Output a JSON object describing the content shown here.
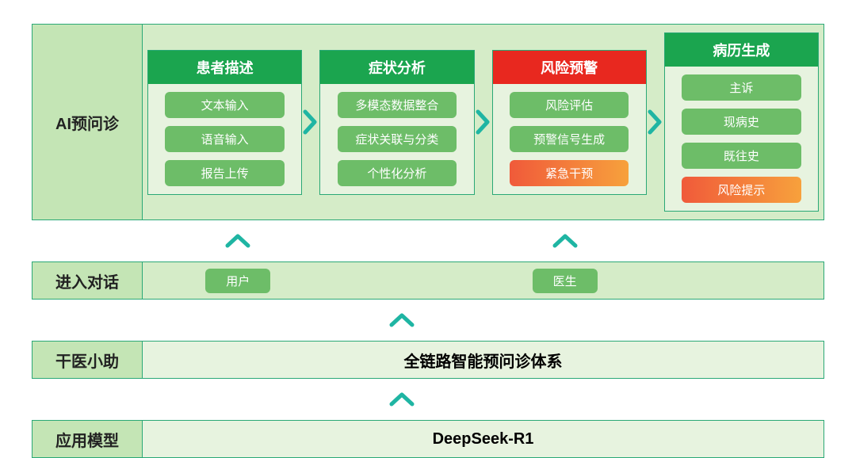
{
  "colors": {
    "label_bg": "#c4e5b5",
    "label_border": "#2aa876",
    "label_text": "#222222",
    "content_bg_light": "#e7f3df",
    "content_bg_lighter": "#d5ecc8",
    "col_border": "#2aa876",
    "col_bg": "#e7f3df",
    "head_green": "#1ba54f",
    "head_red": "#e8281f",
    "pill_green": "#6dbd68",
    "pill_orange_start": "#f05a3a",
    "pill_orange_end": "#f7a13c",
    "arrow_teal": "#1fb5a3",
    "text_dark": "#222222"
  },
  "rows": {
    "r1": {
      "label": "AI预问诊"
    },
    "r2": {
      "label": "进入对话"
    },
    "r3": {
      "label": "干医小助",
      "center": "全链路智能预问诊体系"
    },
    "r4": {
      "label": "应用模型",
      "center": "DeepSeek-R1"
    }
  },
  "columns": [
    {
      "head": "患者描述",
      "head_color": "#1ba54f",
      "items": [
        {
          "text": "文本输入",
          "style": "green"
        },
        {
          "text": "语音输入",
          "style": "green"
        },
        {
          "text": "报告上传",
          "style": "green"
        }
      ]
    },
    {
      "head": "症状分析",
      "head_color": "#1ba54f",
      "items": [
        {
          "text": "多模态数据整合",
          "style": "green"
        },
        {
          "text": "症状关联与分类",
          "style": "green"
        },
        {
          "text": "个性化分析",
          "style": "green"
        }
      ]
    },
    {
      "head": "风险预警",
      "head_color": "#e8281f",
      "items": [
        {
          "text": "风险评估",
          "style": "green"
        },
        {
          "text": "预警信号生成",
          "style": "green"
        },
        {
          "text": "紧急干预",
          "style": "orange"
        }
      ]
    },
    {
      "head": "病历生成",
      "head_color": "#1ba54f",
      "items": [
        {
          "text": "主诉",
          "style": "green"
        },
        {
          "text": "现病史",
          "style": "green"
        },
        {
          "text": "既往史",
          "style": "green"
        },
        {
          "text": "风险提示",
          "style": "orange"
        }
      ]
    }
  ],
  "row2_pills": [
    {
      "text": "用户",
      "pos_pct": 14
    },
    {
      "text": "医生",
      "pos_pct": 62
    }
  ],
  "up_arrows": {
    "after_r1": [
      {
        "pos_pct": 14
      },
      {
        "pos_pct": 62
      }
    ],
    "after_r2": [
      {
        "pos_pct": 38
      }
    ],
    "after_r3": [
      {
        "pos_pct": 38
      }
    ]
  }
}
